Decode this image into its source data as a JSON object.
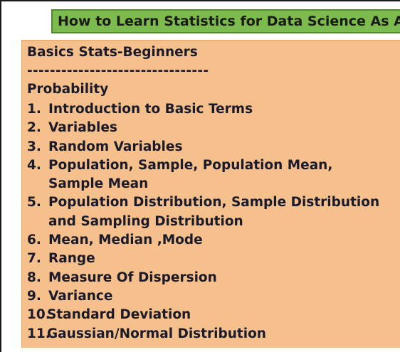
{
  "title": "How to Learn Statistics for Data Science As A Self Starter",
  "heading": "Basics Stats-Beginners",
  "divider": "--------------------------------",
  "subheading": "Probability",
  "topics": [
    {
      "num": "1.",
      "text": "Introduction to Basic Terms"
    },
    {
      "num": "2.",
      "text": "Variables"
    },
    {
      "num": "3.",
      "text": "Random Variables"
    },
    {
      "num": "4.",
      "text": "Population, Sample, Population Mean,",
      "text2": "Sample Mean"
    },
    {
      "num": "5.",
      "text": "Population Distribution, Sample Distribution",
      "text2": "and Sampling Distribution"
    },
    {
      "num": "6.",
      "text": "Mean, Median ,Mode"
    },
    {
      "num": "7.",
      "text": "Range"
    },
    {
      "num": "8.",
      "text": "Measure Of Dispersion"
    },
    {
      "num": "9.",
      "text": "Variance"
    },
    {
      "num": "10.",
      "text": "Standard Deviation"
    },
    {
      "num": "11.",
      "text": "Gaussian/Normal Distribution"
    }
  ],
  "colors": {
    "banner": "#7dbb4e",
    "content_background": "#f6c08c",
    "text": "#1a1a2a"
  }
}
